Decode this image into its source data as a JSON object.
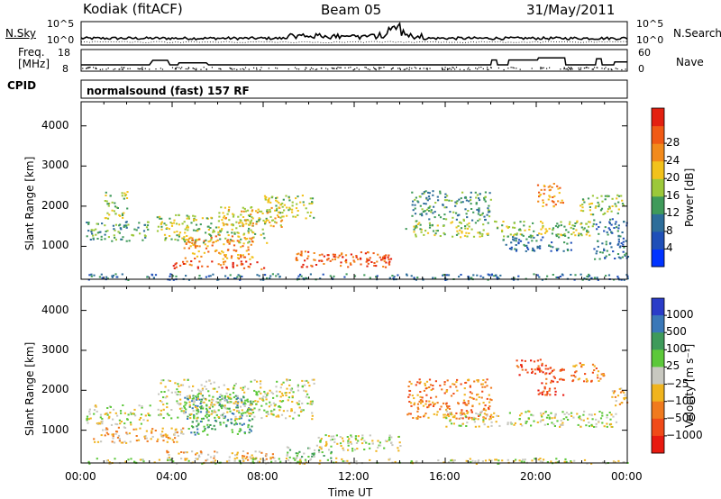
{
  "header": {
    "station": "Kodiak (fitACF)",
    "beam": "Beam 05",
    "date": "31/May/2011"
  },
  "left_labels": {
    "nsky": "N.Sky",
    "freq_line1": "Freq.",
    "freq_line2": "[MHz]",
    "cpid": "CPID"
  },
  "right_labels": {
    "nsearch": "N.Search",
    "nave": "Nave"
  },
  "strip_ticks": {
    "nsky_left": [
      "10^5",
      "10^0"
    ],
    "nsky_right": [
      "10^5",
      "10^0"
    ],
    "freq_left": [
      "18",
      "8"
    ],
    "nave_right": [
      "60",
      "0"
    ]
  },
  "cpid_text": "normalsound (fast) 157 RF",
  "chart_data": [
    {
      "type": "line",
      "name_ref": "N.Sky / N.Search",
      "x_range_hours": [
        0,
        24
      ],
      "yscale": "log",
      "ylim": [
        1,
        100000
      ]
    },
    {
      "type": "line",
      "name_ref": "Freq / Nave",
      "x_range_hours": [
        0,
        24
      ],
      "freq_ylim": [
        8,
        18
      ],
      "nave_ylim": [
        0,
        60
      ],
      "freq_steps": [
        {
          "t": 0.0,
          "v": 10.2
        },
        {
          "t": 3.0,
          "v": 10.2
        },
        {
          "t": 3.15,
          "v": 13.0
        },
        {
          "t": 3.8,
          "v": 13.0
        },
        {
          "t": 3.9,
          "v": 10.2
        },
        {
          "t": 4.25,
          "v": 10.2
        },
        {
          "t": 4.3,
          "v": 11.5
        },
        {
          "t": 5.5,
          "v": 11.5
        },
        {
          "t": 5.6,
          "v": 10.2
        },
        {
          "t": 18.0,
          "v": 10.2
        },
        {
          "t": 18.05,
          "v": 13.2
        },
        {
          "t": 18.25,
          "v": 13.2
        },
        {
          "t": 18.3,
          "v": 10.2
        },
        {
          "t": 18.75,
          "v": 10.2
        },
        {
          "t": 18.8,
          "v": 13.2
        },
        {
          "t": 20.05,
          "v": 13.2
        },
        {
          "t": 20.1,
          "v": 14.5
        },
        {
          "t": 21.25,
          "v": 14.5
        },
        {
          "t": 21.3,
          "v": 10.2
        },
        {
          "t": 22.6,
          "v": 10.2
        },
        {
          "t": 22.65,
          "v": 14.0
        },
        {
          "t": 22.85,
          "v": 14.0
        },
        {
          "t": 22.9,
          "v": 10.2
        },
        {
          "t": 23.4,
          "v": 10.2
        },
        {
          "t": 23.45,
          "v": 12.0
        },
        {
          "t": 24.0,
          "v": 12.0
        }
      ]
    },
    {
      "type": "heatmap",
      "quantity": "Power",
      "xlabel": "",
      "ylabel": "Slant Range [km]",
      "x_range_hours": [
        0,
        24
      ],
      "ylim": [
        180,
        4600
      ],
      "yticks": [
        1000,
        2000,
        3000,
        4000
      ],
      "colorbar_label": "Power [dB]",
      "colorbar_ticks": [
        "4",
        "8",
        "12",
        "16",
        "20",
        "24",
        "28"
      ],
      "colorbar_colors": [
        "#0033ff",
        "#1f4fb8",
        "#2d6d9a",
        "#3f9a5a",
        "#9cc83a",
        "#f2c21b",
        "#f28a1b",
        "#f05a15",
        "#e32010"
      ],
      "regions": [
        {
          "t0": 0.2,
          "t1": 3.0,
          "r0": 1150,
          "r1": 1650,
          "level": 3
        },
        {
          "t0": 1.0,
          "t1": 2.0,
          "r0": 1700,
          "r1": 2400,
          "level": 4
        },
        {
          "t0": 3.3,
          "t1": 8.2,
          "r0": 1100,
          "r1": 1800,
          "level": 4
        },
        {
          "t0": 4.5,
          "t1": 7.5,
          "r0": 700,
          "r1": 1300,
          "level": 6
        },
        {
          "t0": 6.0,
          "t1": 8.8,
          "r0": 1500,
          "r1": 2000,
          "level": 5
        },
        {
          "t0": 8.0,
          "t1": 10.2,
          "r0": 1700,
          "r1": 2300,
          "level": 4
        },
        {
          "t0": 4.0,
          "t1": 8.0,
          "r0": 450,
          "r1": 650,
          "level": 7
        },
        {
          "t0": 9.4,
          "t1": 13.6,
          "r0": 500,
          "r1": 900,
          "level": 7
        },
        {
          "t0": 12.4,
          "t1": 13.5,
          "r0": 550,
          "r1": 800,
          "level": 8
        },
        {
          "t0": 14.2,
          "t1": 22.5,
          "r0": 1250,
          "r1": 1650,
          "level": 4
        },
        {
          "t0": 14.5,
          "t1": 18.0,
          "r0": 1650,
          "r1": 2400,
          "level": 3
        },
        {
          "t0": 18.5,
          "t1": 21.5,
          "r0": 900,
          "r1": 1300,
          "level": 2
        },
        {
          "t0": 20.0,
          "t1": 21.2,
          "r0": 2000,
          "r1": 2600,
          "level": 6
        },
        {
          "t0": 21.8,
          "t1": 23.8,
          "r0": 1800,
          "r1": 2300,
          "level": 4
        },
        {
          "t0": 22.5,
          "t1": 24.0,
          "r0": 700,
          "r1": 1700,
          "level": 2
        },
        {
          "t0": 0.2,
          "t1": 24.0,
          "r0": 180,
          "r1": 330,
          "level": 2
        }
      ]
    },
    {
      "type": "heatmap",
      "quantity": "Velocity",
      "xlabel": "Time UT",
      "ylabel": "Slant Range [km]",
      "x_range_hours": [
        0,
        24
      ],
      "ylim": [
        180,
        4600
      ],
      "yticks": [
        1000,
        2000,
        3000,
        4000
      ],
      "xticks": [
        "00:00",
        "04:00",
        "08:00",
        "12:00",
        "16:00",
        "20:00",
        "00:00"
      ],
      "colorbar_label": "Velocity [m s⁻¹]",
      "colorbar_ticks": [
        "1000",
        "500",
        "100",
        "25",
        "−25",
        "−100",
        "−500",
        "−1000"
      ],
      "colorbar_colors": [
        "#2a3cc8",
        "#3a78b8",
        "#3e9a5a",
        "#5cc83a",
        "#c8c8c0",
        "#f0b41e",
        "#f07a1e",
        "#f04a18",
        "#e81a10"
      ],
      "regions": [
        {
          "t0": 0.2,
          "t1": 3.0,
          "r0": 1150,
          "r1": 1650,
          "level": 4
        },
        {
          "t0": 0.5,
          "t1": 4.5,
          "r0": 700,
          "r1": 1100,
          "level": 5
        },
        {
          "t0": 4.5,
          "t1": 7.5,
          "r0": 900,
          "r1": 1900,
          "level": 2
        },
        {
          "t0": 3.3,
          "t1": 10.2,
          "r0": 1300,
          "r1": 2300,
          "level": 4
        },
        {
          "t0": 3.5,
          "t1": 8.5,
          "r0": 250,
          "r1": 500,
          "level": 5
        },
        {
          "t0": 9.0,
          "t1": 11.0,
          "r0": 300,
          "r1": 600,
          "level": 3
        },
        {
          "t0": 10.0,
          "t1": 14.0,
          "r0": 500,
          "r1": 900,
          "level": 4
        },
        {
          "t0": 14.3,
          "t1": 18.0,
          "r0": 1300,
          "r1": 2300,
          "level": 6
        },
        {
          "t0": 16.0,
          "t1": 23.5,
          "r0": 1100,
          "r1": 1500,
          "level": 4
        },
        {
          "t0": 19.0,
          "t1": 20.5,
          "r0": 2400,
          "r1": 2800,
          "level": 7
        },
        {
          "t0": 20.0,
          "t1": 21.2,
          "r0": 1900,
          "r1": 2600,
          "level": 7
        },
        {
          "t0": 21.5,
          "t1": 23.0,
          "r0": 2200,
          "r1": 2700,
          "level": 6
        },
        {
          "t0": 23.2,
          "t1": 24.0,
          "r0": 1600,
          "r1": 2100,
          "level": 5
        },
        {
          "t0": 0.2,
          "t1": 24.0,
          "r0": 180,
          "r1": 320,
          "level": 4
        }
      ]
    }
  ]
}
